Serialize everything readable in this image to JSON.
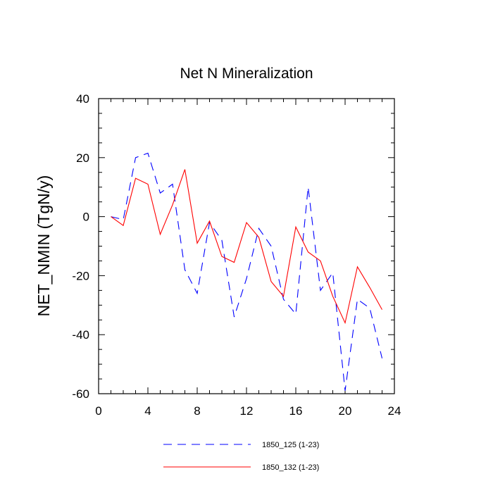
{
  "chart_data": {
    "type": "line",
    "title": "Net N Mineralization",
    "xlabel": "",
    "ylabel": "NET_NMIN  (TgN/y)",
    "xlim": [
      0,
      24
    ],
    "ylim": [
      -60,
      40
    ],
    "xticks": [
      0,
      4,
      8,
      12,
      16,
      20,
      24
    ],
    "yticks": [
      40,
      20,
      0,
      -20,
      -40,
      -60
    ],
    "x": [
      1,
      2,
      3,
      4,
      5,
      6,
      7,
      8,
      9,
      10,
      11,
      12,
      13,
      14,
      15,
      16,
      17,
      18,
      19,
      20,
      21,
      22,
      23
    ],
    "series": [
      {
        "name": "1850_125 (1-23)",
        "color": "#0000ff",
        "dash": "dashed",
        "values": [
          0,
          -1,
          20,
          21.5,
          8,
          11,
          -18,
          -26,
          -2,
          -8,
          -34,
          -21,
          -4,
          -10,
          -28,
          -33,
          10,
          -25,
          -19,
          -59,
          -28,
          -31,
          -48
        ]
      },
      {
        "name": "1850_132 (1-23)",
        "color": "#ff0000",
        "dash": "solid",
        "values": [
          0,
          -3,
          13,
          11,
          -6,
          4,
          16,
          -9,
          -1.5,
          -13.5,
          -15.5,
          -2,
          -7,
          -22,
          -27,
          -3.5,
          -12,
          -15,
          -27,
          -36,
          -17,
          -24,
          -31.5
        ]
      }
    ],
    "legend_position": "bottom-center"
  }
}
